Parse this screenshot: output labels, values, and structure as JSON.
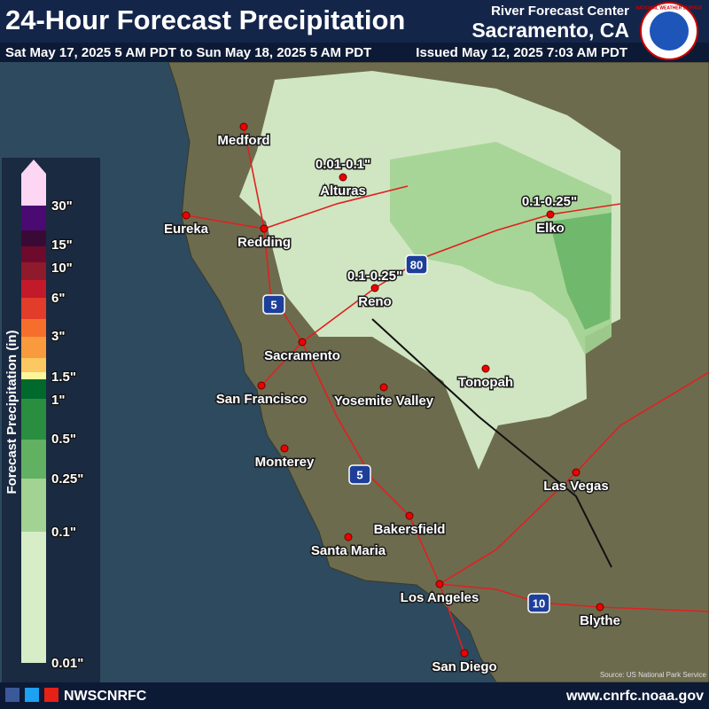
{
  "header": {
    "title": "24-Hour Forecast Precipitation",
    "valid_period": "Sat May 17, 2025 5 AM PDT to Sun May 18, 2025 5 AM PDT",
    "issued": "Issued May 12, 2025 7:03 AM PDT",
    "office": "River Forecast Center",
    "location": "Sacramento, CA",
    "logo_text": "NATIONAL WEATHER SERVICE"
  },
  "legend": {
    "title": "Forecast Precipitation (in)",
    "labels": [
      "30\"",
      "15\"",
      "10\"",
      "6\"",
      "3\"",
      "1.5\"",
      "1\"",
      "0.5\"",
      "0.25\"",
      "0.1\"",
      "0.01\""
    ],
    "colors": [
      "#fcd6f2",
      "#4a0a72",
      "#3a0a36",
      "#6e0a2c",
      "#8e1a2c",
      "#c21a2a",
      "#e23c2a",
      "#f56e2c",
      "#f99a3c",
      "#fbc862",
      "#fcf59c",
      "#00692c",
      "#2a8e40",
      "#62b062",
      "#a2d392",
      "#d6edc8"
    ]
  },
  "map": {
    "cities": [
      "Medford",
      "Eureka",
      "Redding",
      "Alturas",
      "Reno",
      "Elko",
      "Sacramento",
      "San Francisco",
      "Yosemite Valley",
      "Tonopah",
      "Monterey",
      "Las Vegas",
      "Bakersfield",
      "Santa Maria",
      "Los Angeles",
      "Blythe",
      "San Diego"
    ],
    "amount_labels": [
      "0.01-0.1\"",
      "0.1-0.25\"",
      "0.1-0.25\""
    ],
    "highway_shields": [
      "5",
      "80",
      "5",
      "10"
    ],
    "source": "Source: US National Park Service"
  },
  "footer": {
    "handle": "NWSCNRFC",
    "website": "www.cnrfc.noaa.gov"
  }
}
